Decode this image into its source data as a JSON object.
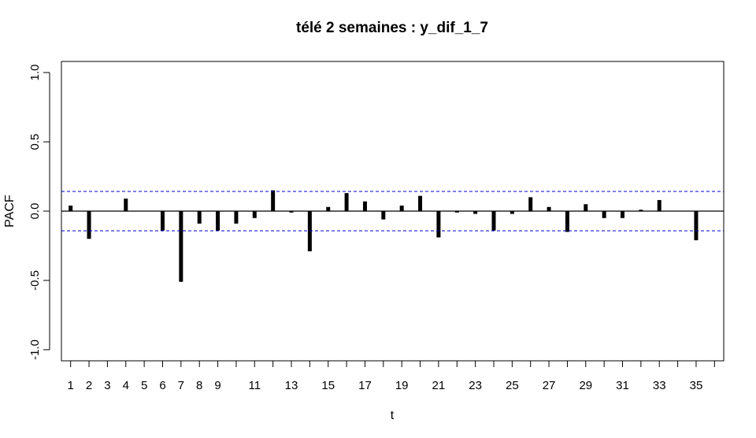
{
  "chart_data": {
    "type": "bar",
    "title": "télé 2 semaines : y_dif_1_7",
    "xlabel": "t",
    "ylabel": "PACF",
    "xlim": [
      0.5,
      36.5
    ],
    "ylim": [
      -1.08,
      1.08
    ],
    "x_ticks": [
      1,
      2,
      3,
      4,
      5,
      6,
      7,
      8,
      9,
      10,
      11,
      12,
      13,
      14,
      15,
      16,
      17,
      18,
      19,
      20,
      21,
      22,
      23,
      24,
      25,
      26,
      27,
      28,
      29,
      30,
      31,
      32,
      33,
      34,
      35,
      36
    ],
    "x_tick_labels": [
      "1",
      "2",
      "3",
      "4",
      "5",
      "6",
      "7",
      "8",
      "9",
      "",
      "11",
      "",
      "13",
      "",
      "15",
      "",
      "17",
      "",
      "19",
      "",
      "21",
      "",
      "23",
      "",
      "25",
      "",
      "27",
      "",
      "29",
      "",
      "31",
      "",
      "33",
      "",
      "35",
      ""
    ],
    "y_ticks": [
      -1.0,
      -0.5,
      0.0,
      0.5,
      1.0
    ],
    "y_tick_labels": [
      "-1.0",
      "-0.5",
      "0.0",
      "0.5",
      "1.0"
    ],
    "confidence_bound": 0.142,
    "x": [
      1,
      2,
      3,
      4,
      5,
      6,
      7,
      8,
      9,
      10,
      11,
      12,
      13,
      14,
      15,
      16,
      17,
      18,
      19,
      20,
      21,
      22,
      23,
      24,
      25,
      26,
      27,
      28,
      29,
      30,
      31,
      32,
      33,
      34,
      35
    ],
    "values": [
      0.04,
      -0.2,
      0.0,
      0.09,
      0.0,
      -0.14,
      -0.51,
      -0.09,
      -0.14,
      -0.09,
      -0.05,
      0.15,
      -0.01,
      -0.29,
      0.03,
      0.13,
      0.07,
      -0.06,
      0.04,
      0.11,
      -0.19,
      -0.01,
      -0.02,
      -0.14,
      -0.02,
      0.1,
      0.03,
      -0.15,
      0.05,
      -0.05,
      -0.05,
      0.01,
      0.08,
      0.0,
      -0.21
    ],
    "bar_color": "#000000",
    "bound_color": "#0000cc",
    "grid": false
  }
}
